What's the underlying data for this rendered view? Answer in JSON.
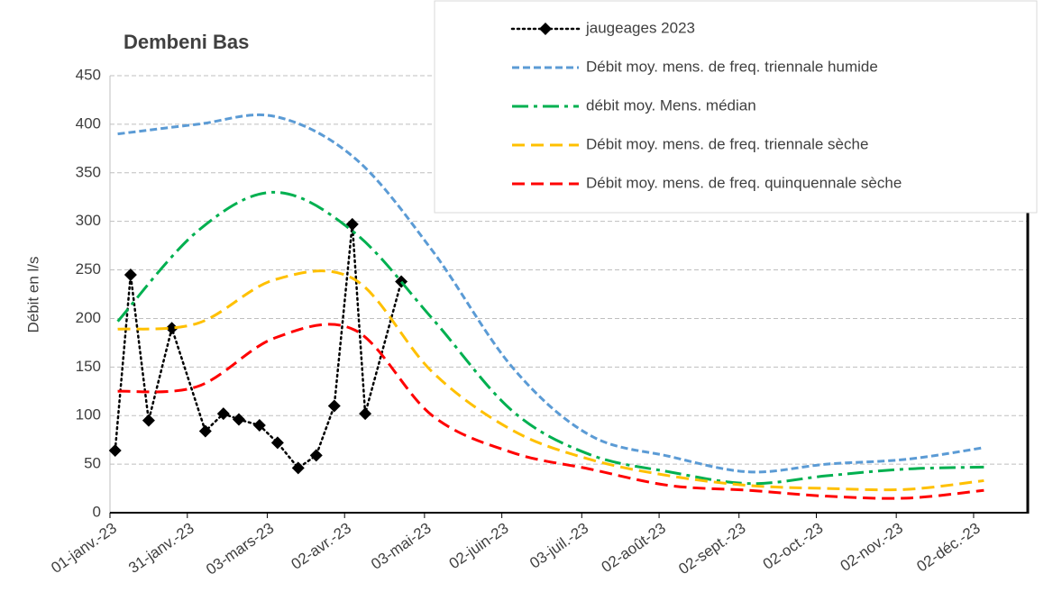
{
  "chart_data": {
    "type": "line",
    "title": "Dembeni Bas",
    "y_label": "Débit en l/s",
    "xlim": [
      44927,
      45283
    ],
    "ylim": [
      0,
      450
    ],
    "yticks": [
      0,
      50,
      100,
      150,
      200,
      250,
      300,
      350,
      400,
      450
    ],
    "xticks": [
      {
        "value": 44927,
        "label": "01-janv.-23"
      },
      {
        "value": 44957,
        "label": "31-janv.-23"
      },
      {
        "value": 44988,
        "label": "03-mars-23"
      },
      {
        "value": 45018,
        "label": "02-avr.-23"
      },
      {
        "value": 45049,
        "label": "03-mai-23"
      },
      {
        "value": 45079,
        "label": "02-juin-23"
      },
      {
        "value": 45110,
        "label": "03-juil.-23"
      },
      {
        "value": 45140,
        "label": "02-août-23"
      },
      {
        "value": 45171,
        "label": "02-sept.-23"
      },
      {
        "value": 45201,
        "label": "02-oct.-23"
      },
      {
        "value": 45232,
        "label": "02-nov.-23"
      },
      {
        "value": 45262,
        "label": "02-déc.-23"
      }
    ],
    "grid": true,
    "legend": "top-right",
    "series": [
      {
        "name": "jaugeages 2023",
        "color": "#000000",
        "dash": "2,4",
        "marker": "diamond",
        "smooth": false,
        "x": [
          44929,
          44935,
          44942,
          44951,
          44964,
          44971,
          44977,
          44985,
          44992,
          45000,
          45007,
          45014,
          45021,
          45026,
          45040
        ],
        "values": [
          64,
          245,
          95,
          190,
          84,
          102,
          96,
          90,
          72,
          46,
          59,
          110,
          297,
          102,
          238
        ]
      },
      {
        "name": "Débit moy. mens. de freq. triennale humide",
        "color": "#5b9bd5",
        "dash": "8,4",
        "smooth": true,
        "x": [
          44930,
          44961,
          44991,
          45022,
          45052,
          45083,
          45113,
          45144,
          45175,
          45205,
          45236,
          45266
        ],
        "values": [
          390,
          400,
          408,
          365,
          270,
          150,
          80,
          58,
          42,
          50,
          55,
          67
        ]
      },
      {
        "name": "débit moy. Mens. médian",
        "color": "#00b050",
        "dash": "18,6,4,6",
        "smooth": true,
        "x": [
          44930,
          44961,
          44991,
          45022,
          45052,
          45083,
          45113,
          45144,
          45175,
          45205,
          45236,
          45266
        ],
        "values": [
          197,
          290,
          330,
          288,
          200,
          105,
          60,
          42,
          30,
          38,
          45,
          47
        ]
      },
      {
        "name": "Débit moy. mens. de freq. triennale sèche",
        "color": "#ffc000",
        "dash": "14,7",
        "smooth": true,
        "x": [
          44930,
          44961,
          44991,
          45022,
          45052,
          45083,
          45113,
          45144,
          45175,
          45205,
          45236,
          45266
        ],
        "values": [
          189,
          195,
          240,
          240,
          145,
          85,
          55,
          38,
          28,
          25,
          24,
          33
        ]
      },
      {
        "name": "Débit moy. mens. de freq. quinquennale sèche",
        "color": "#ff0000",
        "dash": "14,7",
        "smooth": true,
        "x": [
          44930,
          44961,
          44991,
          45022,
          45052,
          45083,
          45113,
          45144,
          45175,
          45205,
          45236,
          45266
        ],
        "values": [
          125,
          130,
          180,
          188,
          100,
          62,
          45,
          28,
          23,
          17,
          15,
          23
        ]
      }
    ]
  }
}
